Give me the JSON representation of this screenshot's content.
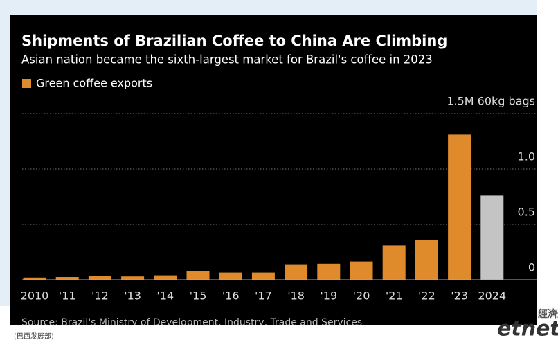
{
  "chart_data": {
    "type": "bar",
    "title": "Shipments of Brazilian Coffee to China Are Climbing",
    "subtitle": "Asian nation became the sixth-largest market for Brazil's coffee in 2023",
    "source": "Source: Brazil's Ministry of Development, Industry, Trade and Services",
    "caption": "(巴西发展部)",
    "logo": "etnet",
    "logo_cn": "經濟通",
    "categories": [
      "2010",
      "'11",
      "'12",
      "'13",
      "'14",
      "'15",
      "'16",
      "'17",
      "'18",
      "'19",
      "'20",
      "'21",
      "'22",
      "'23",
      "2024"
    ],
    "series": [
      {
        "name": "Green coffee exports",
        "color": "#e08b2b",
        "colors": [
          "#e08b2b",
          "#e08b2b",
          "#e08b2b",
          "#e08b2b",
          "#e08b2b",
          "#e08b2b",
          "#e08b2b",
          "#e08b2b",
          "#e08b2b",
          "#e08b2b",
          "#e08b2b",
          "#e08b2b",
          "#e08b2b",
          "#e08b2b",
          "#c4c4c4"
        ],
        "values": [
          0.02,
          0.025,
          0.035,
          0.03,
          0.04,
          0.075,
          0.065,
          0.065,
          0.14,
          0.145,
          0.165,
          0.31,
          0.36,
          1.31,
          0.76
        ]
      }
    ],
    "ylim": [
      0,
      1.5
    ],
    "yticks": [
      0,
      0.5,
      {
        "value": 1.0,
        "label": "1.0"
      },
      {
        "value": 1.5,
        "label": "1.5M 60kg bags"
      }
    ],
    "grid": true
  }
}
